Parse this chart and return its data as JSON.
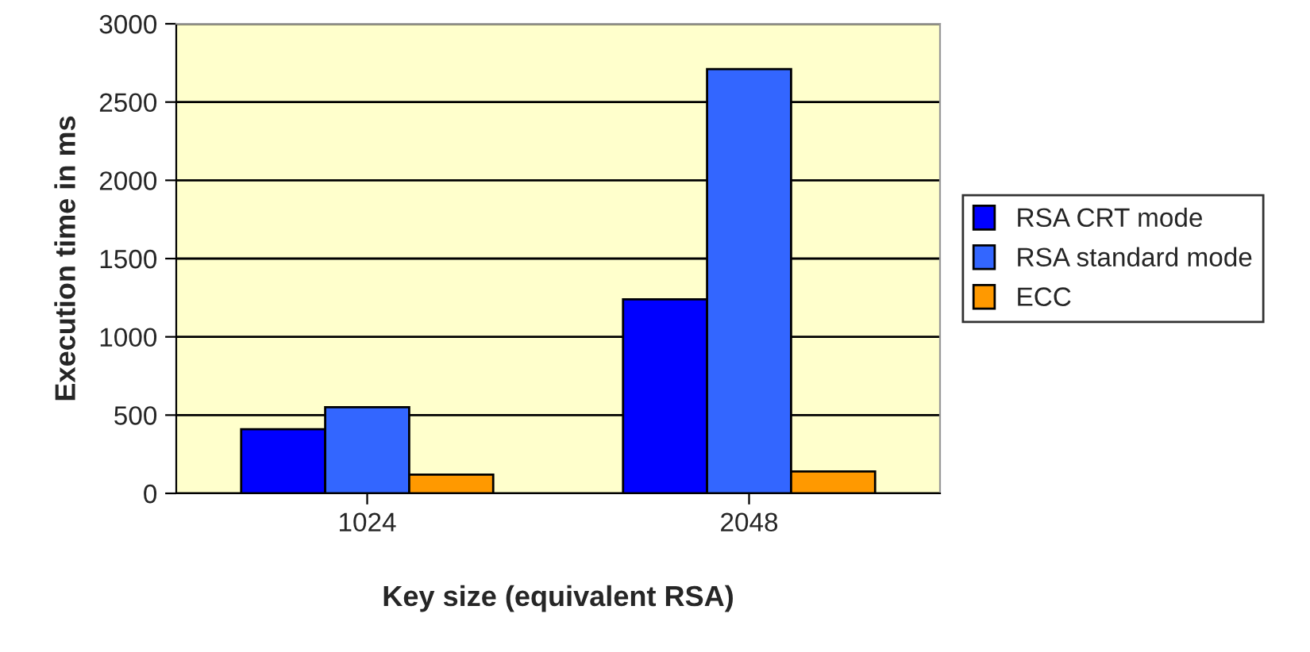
{
  "chart_data": {
    "type": "bar",
    "xlabel": "Key size (equivalent RSA)",
    "ylabel": "Execution time in ms",
    "categories": [
      "1024",
      "2048"
    ],
    "series": [
      {
        "name": "RSA CRT mode",
        "color": "#0000ff",
        "values": [
          410,
          1240
        ]
      },
      {
        "name": "RSA standard mode",
        "color": "#3366ff",
        "values": [
          550,
          2710
        ]
      },
      {
        "name": "ECC",
        "color": "#ff9900",
        "values": [
          120,
          140
        ]
      }
    ],
    "ylim": [
      0,
      3000
    ],
    "yticks": [
      0,
      500,
      1000,
      1500,
      2000,
      2500,
      3000
    ],
    "grid": "y",
    "legend": "right"
  }
}
